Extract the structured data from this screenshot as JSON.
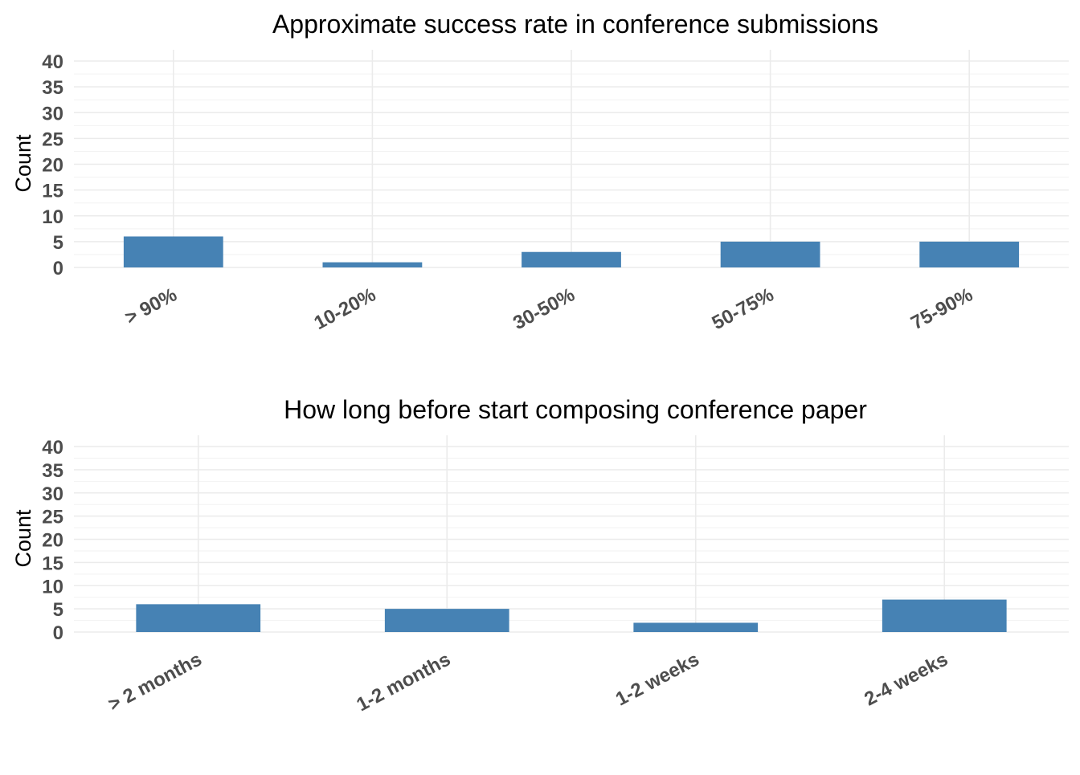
{
  "chart_data": [
    {
      "type": "bar",
      "title": "Approximate success rate in  conference submissions",
      "xlabel": "",
      "ylabel": "Count",
      "categories": [
        "> 90%",
        "10-20%",
        "30-50%",
        "50-75%",
        "75-90%"
      ],
      "values": [
        6,
        1,
        3,
        5,
        5
      ],
      "ylim": [
        0,
        40
      ],
      "yticks": [
        "0",
        "5",
        "10",
        "15",
        "20",
        "25",
        "30",
        "35",
        "40"
      ],
      "grid": true,
      "bar_color": "#4682b4"
    },
    {
      "type": "bar",
      "title": "How long before start composing conference paper",
      "xlabel": "",
      "ylabel": "Count",
      "categories": [
        "> 2 months",
        "1-2 months",
        "1-2 weeks",
        "2-4 weeks"
      ],
      "values": [
        6,
        5,
        2,
        7
      ],
      "ylim": [
        0,
        40
      ],
      "yticks": [
        "0",
        "5",
        "10",
        "15",
        "20",
        "25",
        "30",
        "35",
        "40"
      ],
      "grid": true,
      "bar_color": "#4682b4"
    }
  ]
}
